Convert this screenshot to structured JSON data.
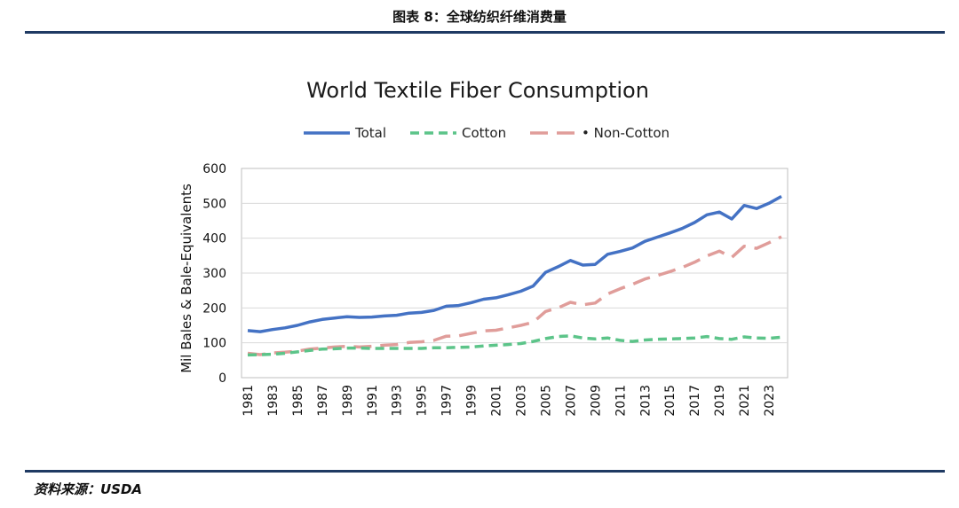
{
  "header": {
    "figure_title": "图表 8：全球纺织纤维消费量"
  },
  "footer": {
    "source": "资料来源：USDA"
  },
  "chart_data": {
    "type": "line",
    "title": "World Textile Fiber Consumption",
    "xlabel": "",
    "ylabel": "Mil Bales & Bale-Equivalents",
    "ylim": [
      0,
      600
    ],
    "yticks": [
      0,
      100,
      200,
      300,
      400,
      500,
      600
    ],
    "grid": true,
    "legend_position": "top",
    "x": [
      1981,
      1982,
      1983,
      1984,
      1985,
      1986,
      1987,
      1988,
      1989,
      1990,
      1991,
      1992,
      1993,
      1994,
      1995,
      1996,
      1997,
      1998,
      1999,
      2000,
      2001,
      2002,
      2003,
      2004,
      2005,
      2006,
      2007,
      2008,
      2009,
      2010,
      2011,
      2012,
      2013,
      2014,
      2015,
      2016,
      2017,
      2018,
      2019,
      2020,
      2021,
      2022,
      2023,
      2024
    ],
    "x_tick_labels": [
      "1981",
      "1983",
      "1985",
      "1987",
      "1989",
      "1991",
      "1993",
      "1995",
      "1997",
      "1999",
      "2001",
      "2003",
      "2005",
      "2007",
      "2009",
      "2011",
      "2013",
      "2015",
      "2017",
      "2019",
      "2021",
      "2023"
    ],
    "series": [
      {
        "name": "Total",
        "color": "#4472c4",
        "style": "solid",
        "values": [
          135,
          132,
          138,
          143,
          150,
          160,
          167,
          171,
          175,
          173,
          174,
          177,
          179,
          185,
          187,
          193,
          205,
          207,
          215,
          225,
          229,
          238,
          248,
          263,
          302,
          318,
          336,
          323,
          325,
          354,
          362,
          372,
          391,
          403,
          415,
          428,
          445,
          467,
          475,
          455,
          494,
          485,
          500,
          520
        ]
      },
      {
        "name": "Cotton",
        "color": "#5cc489",
        "style": "dashed",
        "values": [
          65,
          66,
          67,
          70,
          74,
          78,
          82,
          83,
          85,
          85,
          84,
          84,
          84,
          84,
          84,
          86,
          86,
          87,
          88,
          91,
          93,
          95,
          98,
          104,
          112,
          118,
          120,
          114,
          111,
          114,
          107,
          104,
          108,
          110,
          111,
          112,
          114,
          118,
          112,
          110,
          117,
          114,
          113,
          116
        ]
      },
      {
        "name": "Non-Cotton",
        "color": "#e09d9a",
        "style": "dashed",
        "values": [
          70,
          66,
          71,
          73,
          76,
          82,
          85,
          88,
          90,
          88,
          90,
          93,
          95,
          101,
          103,
          107,
          119,
          120,
          127,
          134,
          136,
          143,
          150,
          159,
          190,
          200,
          216,
          209,
          214,
          240,
          255,
          268,
          283,
          293,
          304,
          316,
          331,
          349,
          363,
          345,
          377,
          371,
          387,
          404
        ]
      }
    ]
  }
}
